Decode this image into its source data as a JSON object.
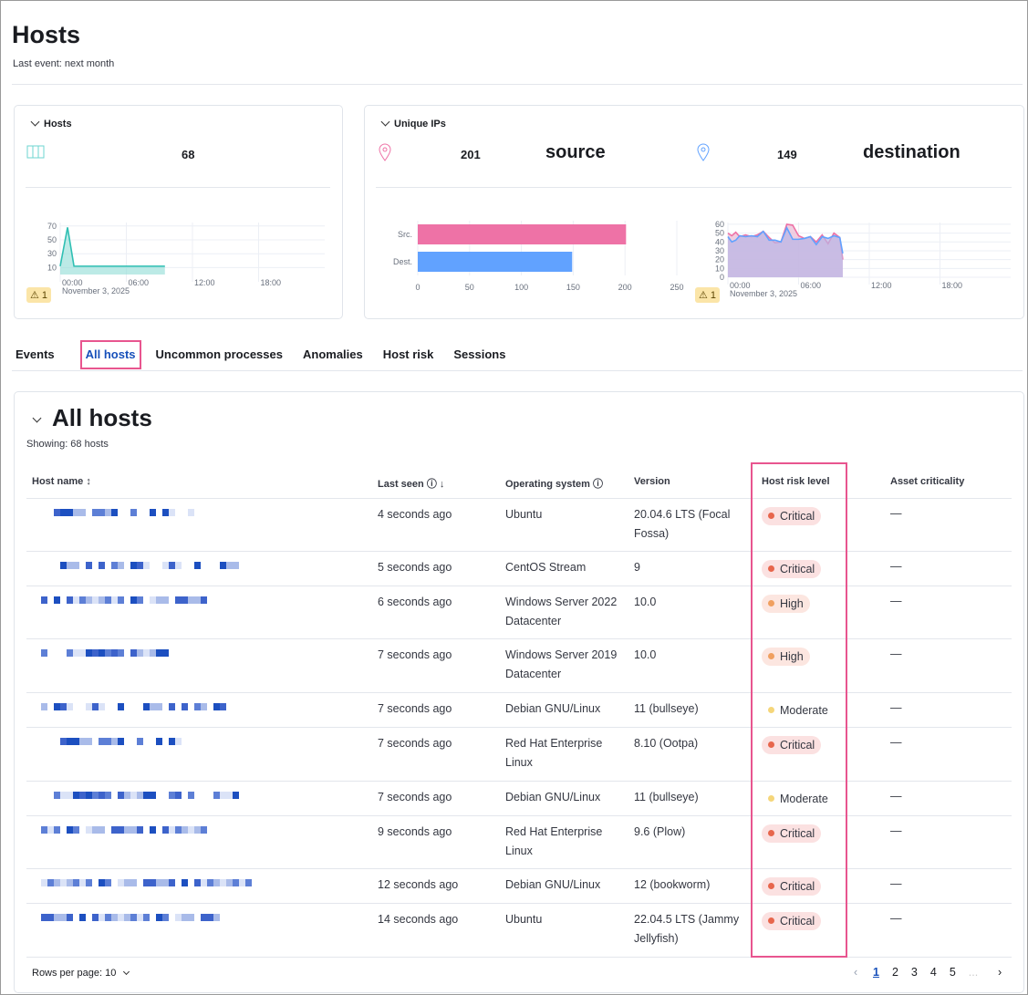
{
  "page": {
    "title": "Hosts",
    "last_event": "Last event: next month"
  },
  "hosts_card": {
    "title": "Hosts",
    "icon": "server-icon",
    "count": "68",
    "warning_count": "1"
  },
  "ips_card": {
    "title": "Unique IPs",
    "source_count": "201",
    "source_label": "source",
    "destination_count": "149",
    "destination_label": "destination",
    "warning_count": "1",
    "icon": "map-pin-icon"
  },
  "tabs": [
    {
      "label": "Events"
    },
    {
      "label": "All hosts",
      "active": true
    },
    {
      "label": "Uncommon processes"
    },
    {
      "label": "Anomalies"
    },
    {
      "label": "Host risk"
    },
    {
      "label": "Sessions"
    }
  ],
  "table": {
    "title": "All hosts",
    "showing": "Showing: 68 hosts",
    "columns": [
      "Host name",
      "Last seen",
      "Operating system",
      "Version",
      "Host risk level",
      "Asset criticality"
    ],
    "rows": [
      {
        "last_seen": "4 seconds ago",
        "os": "Ubuntu",
        "version": "20.04.6 LTS (Focal Fossa)",
        "risk": "Critical",
        "asset": "—"
      },
      {
        "last_seen": "5 seconds ago",
        "os": "CentOS Stream",
        "version": "9",
        "risk": "Critical",
        "asset": "—"
      },
      {
        "last_seen": "6 seconds ago",
        "os": "Windows Server 2022 Datacenter",
        "version": "10.0",
        "risk": "High",
        "asset": "—"
      },
      {
        "last_seen": "7 seconds ago",
        "os": "Windows Server 2019 Datacenter",
        "version": "10.0",
        "risk": "High",
        "asset": "—"
      },
      {
        "last_seen": "7 seconds ago",
        "os": "Debian GNU/Linux",
        "version": "11 (bullseye)",
        "risk": "Moderate",
        "asset": "—"
      },
      {
        "last_seen": "7 seconds ago",
        "os": "Red Hat Enterprise Linux",
        "version": "8.10 (Ootpa)",
        "risk": "Critical",
        "asset": "—"
      },
      {
        "last_seen": "7 seconds ago",
        "os": "Debian GNU/Linux",
        "version": "11 (bullseye)",
        "risk": "Moderate",
        "asset": "—"
      },
      {
        "last_seen": "9 seconds ago",
        "os": "Red Hat Enterprise Linux",
        "version": "9.6 (Plow)",
        "risk": "Critical",
        "asset": "—"
      },
      {
        "last_seen": "12 seconds ago",
        "os": "Debian GNU/Linux",
        "version": "12 (bookworm)",
        "risk": "Critical",
        "asset": "—"
      },
      {
        "last_seen": "14 seconds ago",
        "os": "Ubuntu",
        "version": "22.04.5 LTS (Jammy Jellyfish)",
        "risk": "Critical",
        "asset": "—"
      }
    ],
    "rows_per_page": "Rows per page: 10",
    "pages": [
      "1",
      "2",
      "3",
      "4",
      "5"
    ],
    "current_page": "1",
    "ellipsis": "..."
  },
  "risk_colors": {
    "Critical": {
      "dot": "#e7664c",
      "bg": "#fbe1e1"
    },
    "High": {
      "dot": "#f0a060",
      "bg": "#fce6e0"
    },
    "Moderate": {
      "dot": "#f5d67a",
      "bg": "transparent"
    }
  },
  "chart_data": [
    {
      "type": "area",
      "title": "",
      "x": [
        "00:00",
        "00:40",
        "01:15",
        "02:00",
        "04:00",
        "06:00",
        "08:00",
        "09:30"
      ],
      "values": [
        12,
        68,
        12,
        12,
        12,
        12,
        12,
        12
      ],
      "yticks": [
        10,
        30,
        50,
        70
      ],
      "xticks": [
        "00:00",
        "06:00",
        "12:00",
        "18:00"
      ],
      "xsub": "November 3, 2025",
      "color": "#54b399"
    },
    {
      "type": "bar",
      "orientation": "horizontal",
      "categories": [
        "Src.",
        "Dest."
      ],
      "values": [
        201,
        149
      ],
      "colors": [
        "#ee72a6",
        "#61a2ff"
      ],
      "xlim": [
        0,
        250
      ],
      "xticks": [
        0,
        50,
        100,
        150,
        200,
        250
      ]
    },
    {
      "type": "area",
      "x": [
        "00:00",
        "00:20",
        "00:40",
        "01:00",
        "01:30",
        "02:00",
        "02:30",
        "03:00",
        "03:30",
        "04:00",
        "04:30",
        "05:00",
        "05:30",
        "06:00",
        "06:30",
        "07:00",
        "07:30",
        "08:00",
        "08:30",
        "09:00",
        "09:30",
        "09:45"
      ],
      "series": [
        {
          "values": [
            50,
            47,
            51,
            46,
            48,
            46,
            48,
            52,
            45,
            39,
            40,
            60,
            59,
            47,
            44,
            46,
            40,
            48,
            38,
            50,
            45,
            20
          ],
          "color": "#ee72a6"
        },
        {
          "values": [
            46,
            40,
            42,
            47,
            46,
            47,
            46,
            52,
            42,
            42,
            40,
            56,
            43,
            43,
            44,
            46,
            37,
            46,
            44,
            47,
            45,
            27
          ],
          "color": "#61a2ff"
        }
      ],
      "yticks": [
        0,
        10,
        20,
        30,
        40,
        50,
        60
      ],
      "xticks": [
        "00:00",
        "06:00",
        "12:00",
        "18:00"
      ],
      "xsub": "November 3, 2025"
    }
  ]
}
